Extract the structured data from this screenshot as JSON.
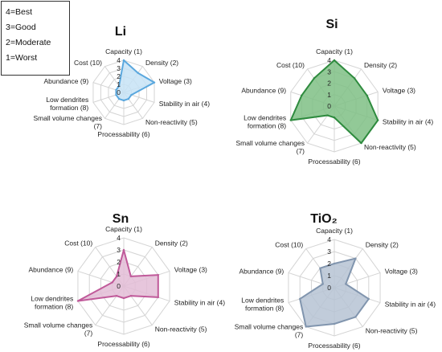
{
  "legend_box": [
    "4=Best",
    "3=Good",
    "2=Moderate",
    "1=Worst"
  ],
  "chart_data": [
    {
      "type": "radar",
      "title": "Li",
      "axes": [
        "Capacity (1)",
        "Density (2)",
        "Voltage (3)",
        "Stability in air (4)",
        "Non-reactivity (5)",
        "Processability (6)",
        "Small volume changes (7)",
        "Low dendrites formation (8)",
        "Abundance (9)",
        "Cost (10)"
      ],
      "ticks": [
        "4",
        "3",
        "2",
        "1",
        "0"
      ],
      "rlim": [
        0,
        4
      ],
      "values": [
        4,
        3,
        4,
        1,
        1,
        1,
        1,
        1,
        1,
        1
      ],
      "color": "#5ba8de",
      "fill": "#c7e3f6"
    },
    {
      "type": "radar",
      "title": "Si",
      "axes": [
        "Capacity (1)",
        "Density (2)",
        "Voltage (3)",
        "Stability in air (4)",
        "Non-reactivity (5)",
        "Processability (6)",
        "Small volume changes (7)",
        "Low dendrites formation (8)",
        "Abundance (9)",
        "Cost (10)"
      ],
      "ticks": [
        "4",
        "3",
        "2",
        "1",
        "0"
      ],
      "rlim": [
        0,
        4
      ],
      "values": [
        4,
        3,
        3,
        4,
        4,
        1,
        1,
        4,
        3,
        3
      ],
      "color": "#2e8b3e",
      "fill": "#7fbf85"
    },
    {
      "type": "radar",
      "title": "Sn",
      "axes": [
        "Capacity (1)",
        "Density (2)",
        "Voltage (3)",
        "Stability in air (4)",
        "Non-reactivity (5)",
        "Processability (6)",
        "Small volume changes (7)",
        "Low dendrites formation (8)",
        "Abundance (9)",
        "Cost (10)"
      ],
      "ticks": [
        "4",
        "3",
        "2",
        "1",
        "0"
      ],
      "rlim": [
        0,
        4
      ],
      "values": [
        3,
        1,
        3,
        3,
        1,
        1,
        1,
        4,
        1,
        1
      ],
      "color": "#c05a9a",
      "fill": "#e3bcd6"
    },
    {
      "type": "radar",
      "title": "TiO₂",
      "axes": [
        "Capacity (1)",
        "Density (2)",
        "Voltage (3)",
        "Stability in air (4)",
        "Non-reactivity (5)",
        "Processability (6)",
        "Small volume changes (7)",
        "Low dendrites formation (8)",
        "Abundance (9)",
        "Cost (10)"
      ],
      "ticks": [
        "4",
        "3",
        "2",
        "1",
        "0"
      ],
      "rlim": [
        0,
        4
      ],
      "values": [
        2,
        3,
        1,
        3,
        3,
        3,
        4,
        3,
        1,
        2
      ],
      "color": "#8195ae",
      "fill": "#b6c3d4"
    }
  ]
}
